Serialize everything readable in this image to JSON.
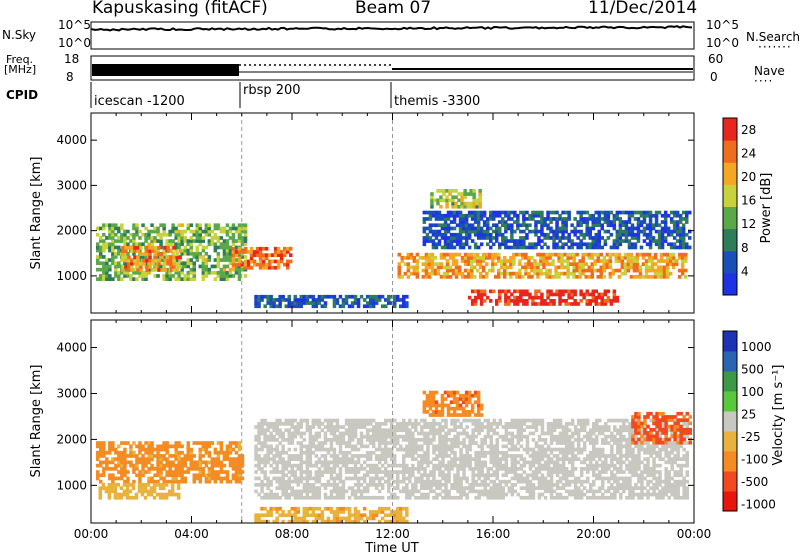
{
  "header": {
    "station_title": "Kapuskasing (fitACF)",
    "beam": "Beam 07",
    "date": "11/Dec/2014"
  },
  "strip_labels": {
    "nsky": "N.Sky",
    "nsky_top": "10^5",
    "nsky_bottom": "10^0",
    "nsearch": "N.Search",
    "nsearch_top": "10^5",
    "nsearch_bottom": "10^0",
    "freq_line1": "Freq.",
    "freq_line2": "[MHz]",
    "freq_top": "18",
    "freq_bottom": "8",
    "nave": "Nave",
    "nave_top": "60",
    "nave_bottom": "0",
    "cpid": "CPID"
  },
  "campaigns": [
    {
      "label": "icescan -1200",
      "start_hour": 0
    },
    {
      "label": "rbsp 200",
      "start_hour": 6
    },
    {
      "label": "themis -3300",
      "start_hour": 12
    }
  ],
  "colors": {
    "power": [
      "#1e32e6",
      "#1a4fb8",
      "#2e7d5a",
      "#5aa84a",
      "#c8d23c",
      "#f5a623",
      "#f06c1e",
      "#e8261e"
    ],
    "velocity": [
      "#e8140e",
      "#f04a1e",
      "#f58c23",
      "#e8b23c",
      "#c8c8c0",
      "#5ac83c",
      "#3c9a46",
      "#2c64b4",
      "#1e32b4"
    ]
  },
  "chart_data": [
    {
      "type": "heatmap",
      "xlabel": "Time UT",
      "ylabel": "Slant Range [km]",
      "xlim": [
        0,
        24
      ],
      "ylim": [
        180,
        4600
      ],
      "x_ticks": [
        "00:00",
        "04:00",
        "08:00",
        "12:00",
        "16:00",
        "20:00",
        "00:00"
      ],
      "y_ticks": [
        1000,
        2000,
        3000,
        4000
      ],
      "colorbar": {
        "label": "Power [dB]",
        "ticks": [
          4,
          8,
          12,
          16,
          20,
          24,
          28
        ],
        "range": [
          0,
          30
        ]
      },
      "regions": [
        {
          "t": [
            0.2,
            6.2
          ],
          "r": [
            900,
            2150
          ],
          "level": 14
        },
        {
          "t": [
            1.2,
            3.5
          ],
          "r": [
            1100,
            1600
          ],
          "level": 22
        },
        {
          "t": [
            5.6,
            8.0
          ],
          "r": [
            1150,
            1600
          ],
          "level": 24
        },
        {
          "t": [
            6.5,
            12.5
          ],
          "r": [
            300,
            520
          ],
          "level": 6
        },
        {
          "t": [
            12.2,
            23.7
          ],
          "r": [
            950,
            1450
          ],
          "level": 21
        },
        {
          "t": [
            15.0,
            21.0
          ],
          "r": [
            350,
            650
          ],
          "level": 29
        },
        {
          "t": [
            13.2,
            23.8
          ],
          "r": [
            1600,
            2400
          ],
          "level": 6
        },
        {
          "t": [
            13.5,
            15.5
          ],
          "r": [
            2500,
            2900
          ],
          "level": 16
        }
      ]
    },
    {
      "type": "heatmap",
      "xlabel": "Time UT",
      "ylabel": "Slant Range [km]",
      "xlim": [
        0,
        24
      ],
      "ylim": [
        180,
        4600
      ],
      "x_ticks": [
        "00:00",
        "04:00",
        "08:00",
        "12:00",
        "16:00",
        "20:00",
        "00:00"
      ],
      "y_ticks": [
        1000,
        2000,
        3000,
        4000
      ],
      "colorbar": {
        "label": "Velocity [m s⁻¹]",
        "ticks": [
          "1000",
          "500",
          "100",
          "25",
          "-25",
          "-100",
          "-500",
          "-1000"
        ]
      },
      "regions": [
        {
          "t": [
            0.2,
            6.0
          ],
          "r": [
            1050,
            1900
          ],
          "level": -150
        },
        {
          "t": [
            0.3,
            3.5
          ],
          "r": [
            700,
            1000
          ],
          "level": -60
        },
        {
          "t": [
            6.5,
            12.5
          ],
          "r": [
            180,
            520
          ],
          "level": -80
        },
        {
          "t": [
            6.5,
            23.7
          ],
          "r": [
            700,
            2400
          ],
          "level": 0
        },
        {
          "t": [
            13.2,
            15.5
          ],
          "r": [
            2500,
            3000
          ],
          "level": -200
        },
        {
          "t": [
            21.5,
            23.8
          ],
          "r": [
            1900,
            2600
          ],
          "level": -300
        }
      ]
    }
  ]
}
